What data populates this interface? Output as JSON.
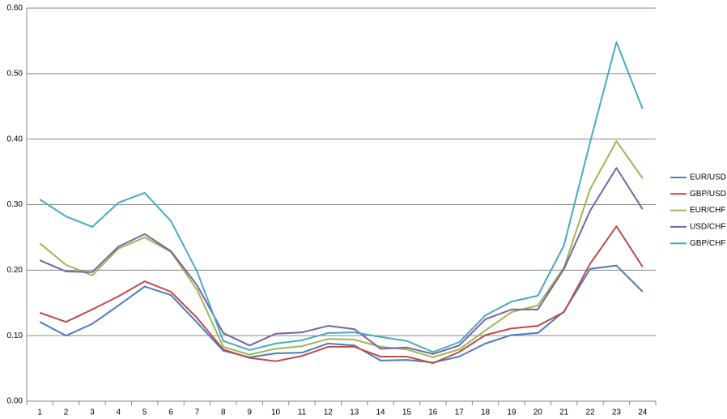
{
  "chart_data": {
    "type": "line",
    "categories": [
      "1",
      "2",
      "3",
      "4",
      "5",
      "6",
      "7",
      "8",
      "9",
      "10",
      "11",
      "12",
      "13",
      "14",
      "15",
      "16",
      "17",
      "18",
      "19",
      "20",
      "21",
      "22",
      "23",
      "24"
    ],
    "series": [
      {
        "name": "EUR/USD",
        "color": "#4a7ebb",
        "values": [
          0.121,
          0.1,
          0.118,
          0.146,
          0.175,
          0.162,
          0.12,
          0.077,
          0.067,
          0.073,
          0.074,
          0.088,
          0.085,
          0.062,
          0.063,
          0.059,
          0.068,
          0.088,
          0.101,
          0.104,
          0.137,
          0.202,
          0.207,
          0.167
        ]
      },
      {
        "name": "GBP/USD",
        "color": "#be4b48",
        "values": [
          0.135,
          0.121,
          0.14,
          0.16,
          0.183,
          0.167,
          0.127,
          0.079,
          0.066,
          0.061,
          0.069,
          0.083,
          0.083,
          0.068,
          0.068,
          0.058,
          0.075,
          0.101,
          0.111,
          0.115,
          0.136,
          0.21,
          0.267,
          0.205
        ]
      },
      {
        "name": "EUR/CHF",
        "color": "#98b954",
        "values": [
          0.241,
          0.208,
          0.192,
          0.233,
          0.25,
          0.228,
          0.17,
          0.083,
          0.071,
          0.08,
          0.084,
          0.095,
          0.094,
          0.083,
          0.079,
          0.067,
          0.079,
          0.108,
          0.136,
          0.146,
          0.204,
          0.324,
          0.397,
          0.34
        ]
      },
      {
        "name": "USD/CHF",
        "color": "#7d60a0",
        "values": [
          0.215,
          0.198,
          0.197,
          0.236,
          0.255,
          0.229,
          0.177,
          0.104,
          0.085,
          0.103,
          0.105,
          0.115,
          0.11,
          0.08,
          0.082,
          0.072,
          0.085,
          0.125,
          0.14,
          0.14,
          0.202,
          0.291,
          0.356,
          0.293
        ]
      },
      {
        "name": "GBP/CHF",
        "color": "#46aac5",
        "values": [
          0.308,
          0.282,
          0.266,
          0.303,
          0.318,
          0.275,
          0.198,
          0.092,
          0.078,
          0.088,
          0.093,
          0.104,
          0.105,
          0.098,
          0.092,
          0.075,
          0.09,
          0.131,
          0.152,
          0.161,
          0.238,
          0.396,
          0.548,
          0.446
        ]
      }
    ],
    "ylim": [
      0,
      0.6
    ],
    "yticks": [
      {
        "value": 0,
        "label": "0.00"
      },
      {
        "value": 0.1,
        "label": "0.10"
      },
      {
        "value": 0.2,
        "label": "0.20"
      },
      {
        "value": 0.3,
        "label": "0.30"
      },
      {
        "value": 0.4,
        "label": "0.40"
      },
      {
        "value": 0.5,
        "label": "0.50"
      },
      {
        "value": 0.6,
        "label": "0.60"
      }
    ],
    "grid": true,
    "legend": "right"
  }
}
